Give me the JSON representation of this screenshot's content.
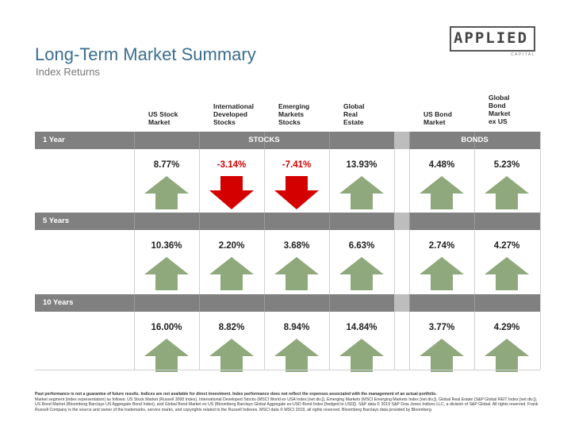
{
  "logo": {
    "name": "APPLIED",
    "sub": "CAPITAL"
  },
  "header": {
    "title": "Long-Term Market Summary",
    "subtitle": "Index Returns"
  },
  "colors": {
    "up": "#8fa97c",
    "down": "#d40000",
    "band": "#808080",
    "title": "#3a6e8f"
  },
  "columns": [
    "US Stock\nMarket",
    "International\nDeveloped\nStocks",
    "Emerging\nMarkets\nStocks",
    "Global\nReal\nEstate",
    "US Bond\nMarket",
    "Global\nBond\nMarket\nex US"
  ],
  "groups": {
    "stocks": "STOCKS",
    "bonds": "BONDS"
  },
  "periods": [
    {
      "label": "1 Year",
      "values": [
        "8.77%",
        "-3.14%",
        "-7.41%",
        "13.93%",
        "4.48%",
        "5.23%"
      ],
      "directions": [
        "up",
        "down",
        "down",
        "up",
        "up",
        "up"
      ]
    },
    {
      "label": "5 Years",
      "values": [
        "10.36%",
        "2.20%",
        "3.68%",
        "6.63%",
        "2.74%",
        "4.27%"
      ],
      "directions": [
        "up",
        "up",
        "up",
        "up",
        "up",
        "up"
      ]
    },
    {
      "label": "10 Years",
      "values": [
        "16.00%",
        "8.82%",
        "8.94%",
        "14.84%",
        "3.77%",
        "4.29%"
      ],
      "directions": [
        "up",
        "up",
        "up",
        "up",
        "up",
        "up"
      ]
    }
  ],
  "footnote": {
    "bold": "Past performance is not a guarantee of future results. Indices are not available for direct investment. Index performance does not reflect the expenses associated with the management of an actual portfolio.",
    "text": "Market segment (index representation) as follows: US Stock Market (Russell 3000 Index), International Developed Stocks (MSCI World ex USA Index [net div.]), Emerging Markets (MSCI Emerging Markets Index [net div.]), Global Real Estate (S&P Global REIT Index [net div.]), US Bond Market (Bloomberg Barclays US Aggregate Bond Index), and Global Bond Market ex US (Bloomberg Barclays Global Aggregate ex-USD Bond Index [hedged to USD]). S&P data © 2019 S&P Dow Jones Indices LLC, a division of S&P Global. All rights reserved. Frank Russell Company is the source and owner of the trademarks, service marks, and copyrights related to the Russell Indexes. MSCI data © MSCI 2019, all rights reserved. Bloomberg Barclays data provided by Bloomberg."
  }
}
